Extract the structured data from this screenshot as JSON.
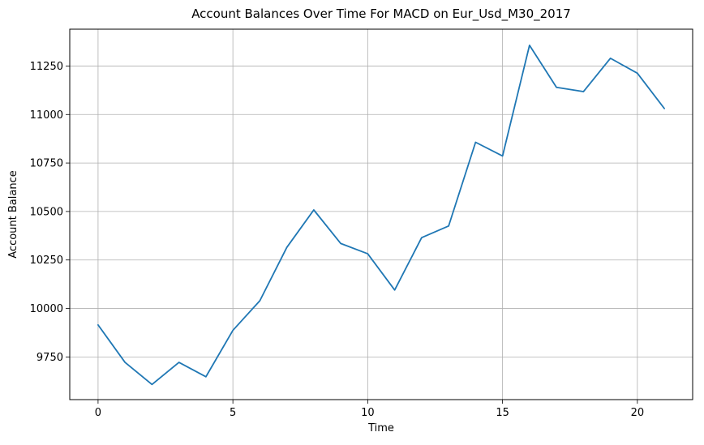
{
  "chart_data": {
    "type": "line",
    "title": "Account Balances Over Time For MACD on Eur_Usd_M30_2017",
    "xlabel": "Time",
    "ylabel": "Account Balance",
    "xlim": [
      -1.05,
      22.05
    ],
    "ylim": [
      9530,
      11440
    ],
    "xticks": [
      0,
      5,
      10,
      15,
      20
    ],
    "yticks": [
      9750,
      10000,
      10250,
      10500,
      10750,
      11000,
      11250
    ],
    "grid": true,
    "line_color": "#1f77b4",
    "series": [
      {
        "x": [
          0,
          1,
          2,
          3,
          4,
          5,
          6,
          7,
          8,
          9,
          10,
          11,
          12,
          13,
          14,
          15,
          16,
          17,
          18,
          19,
          20,
          21
        ],
        "values": [
          9915,
          9722,
          9608,
          9722,
          9648,
          9887,
          10040,
          10315,
          10508,
          10335,
          10282,
          10095,
          10365,
          10425,
          10857,
          10786,
          11357,
          11140,
          11118,
          11290,
          11213,
          11031
        ]
      }
    ]
  }
}
